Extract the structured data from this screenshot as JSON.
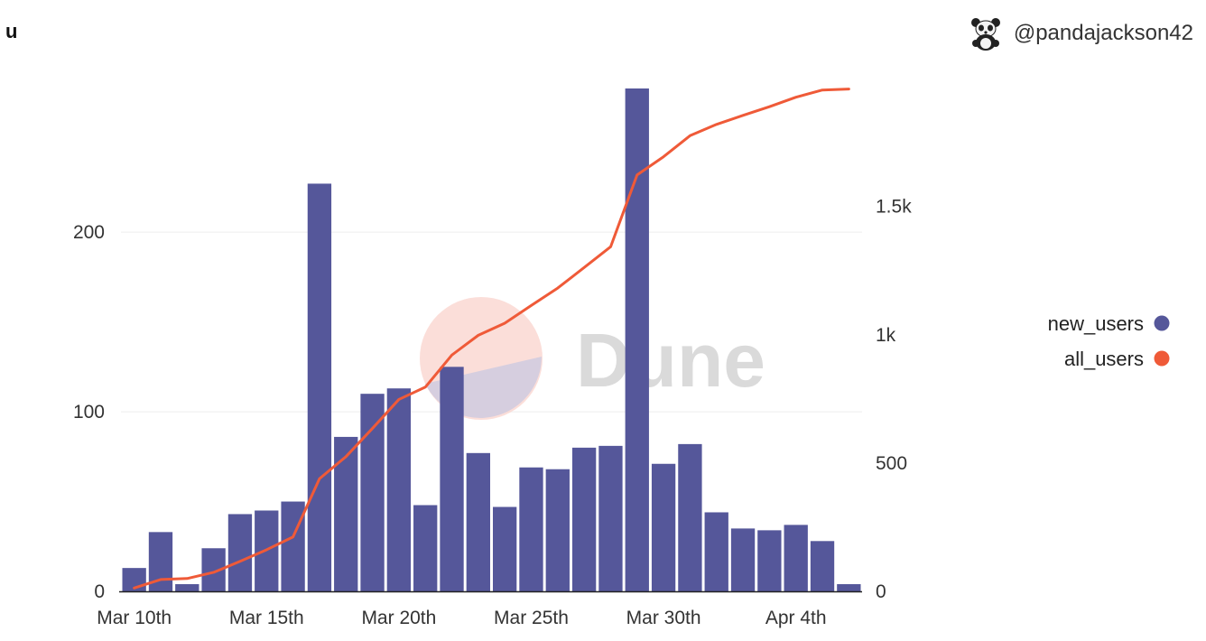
{
  "title": "u",
  "author": {
    "handle": "@pandajackson42",
    "avatar_icon": "panda-avatar-icon"
  },
  "watermark": "Dune",
  "colors": {
    "bars": "#55579a",
    "line": "#ef5a38",
    "grid": "#eeeeee",
    "watermark_circle_top": "#f9d3cc",
    "watermark_circle_bottom": "#c9c8e0"
  },
  "chart_data": {
    "type": "bar",
    "title": "u",
    "x_tick_labels": [
      "Mar 10th",
      "Mar 15th",
      "Mar 20th",
      "Mar 25th",
      "Mar 30th",
      "Apr 4th"
    ],
    "categories": [
      "Mar 10",
      "Mar 11",
      "Mar 12",
      "Mar 13",
      "Mar 14",
      "Mar 15",
      "Mar 16",
      "Mar 17",
      "Mar 18",
      "Mar 19",
      "Mar 20",
      "Mar 21",
      "Mar 22",
      "Mar 23",
      "Mar 24",
      "Mar 25",
      "Mar 26",
      "Mar 27",
      "Mar 28",
      "Mar 29",
      "Mar 30",
      "Mar 31",
      "Apr 1",
      "Apr 2",
      "Apr 3",
      "Apr 4",
      "Apr 5",
      "Apr 6"
    ],
    "series": [
      {
        "name": "new_users",
        "type": "bar",
        "axis": "left",
        "values": [
          13,
          33,
          4,
          24,
          43,
          45,
          50,
          227,
          86,
          110,
          113,
          48,
          125,
          77,
          47,
          69,
          68,
          80,
          81,
          280,
          71,
          82,
          44,
          35,
          34,
          37,
          28,
          4
        ]
      },
      {
        "name": "all_users",
        "type": "line",
        "axis": "right",
        "values": [
          13,
          46,
          50,
          74,
          117,
          162,
          212,
          439,
          525,
          635,
          748,
          796,
          921,
          998,
          1045,
          1114,
          1182,
          1262,
          1343,
          1623,
          1694,
          1776,
          1820,
          1855,
          1889,
          1926,
          1954,
          1958
        ]
      }
    ],
    "y_left": {
      "ticks": [
        0,
        100,
        200
      ],
      "tick_labels": [
        "0",
        "100",
        "200"
      ],
      "range": [
        0,
        280
      ]
    },
    "y_right": {
      "ticks": [
        0,
        500,
        1000,
        1500
      ],
      "tick_labels": [
        "0",
        "500",
        "1k",
        "1.5k"
      ],
      "range": [
        0,
        1960
      ]
    },
    "legend": {
      "position": "right",
      "entries": [
        {
          "label": "new_users",
          "color": "#55579a"
        },
        {
          "label": "all_users",
          "color": "#ef5a38"
        }
      ]
    },
    "grid": true
  }
}
